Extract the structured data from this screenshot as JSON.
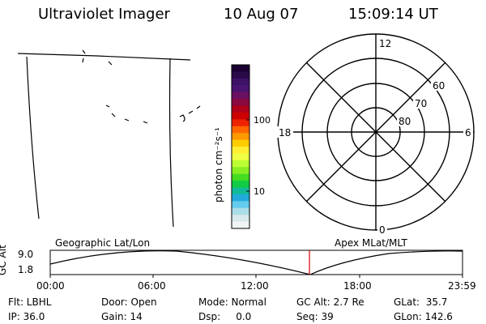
{
  "header": {
    "instrument": "Ultraviolet Imager",
    "date": "10 Aug 07",
    "time": "15:09:14 UT"
  },
  "colorbar": {
    "label": "photon cm⁻²s⁻¹",
    "ticks": [
      "100",
      "10"
    ],
    "colors_top_to_bottom": [
      "#1a0033",
      "#2b0a4a",
      "#3d1266",
      "#4b1470",
      "#6a1060",
      "#8a0a40",
      "#b0001a",
      "#cc0000",
      "#ee2200",
      "#ff6600",
      "#ff9900",
      "#ffcc00",
      "#ffee33",
      "#eeff44",
      "#bbff33",
      "#88ee22",
      "#44dd22",
      "#11cc44",
      "#11bb99",
      "#22aadd",
      "#66ccee",
      "#aadde8",
      "#d8e8ec",
      "#f0f4f4"
    ]
  },
  "polar": {
    "mlt_labels": {
      "top": "12",
      "left": "18",
      "right": "6",
      "bottom": "0"
    },
    "lat_labels": [
      "60",
      "70",
      "80"
    ]
  },
  "orbit": {
    "left_label": "Geographic Lat/Lon",
    "right_label": "Apex MLat/MLT",
    "axis_title": "GC Alt",
    "y_ticks": [
      "9.0",
      "1.8"
    ],
    "x_ticks": [
      "00:00",
      "06:00",
      "12:00",
      "18:00",
      "23:59"
    ]
  },
  "status": {
    "flt": "Flt: LBHL",
    "ip": "IP: 36.0",
    "door": "Door: Open",
    "gain": "Gain: 14",
    "mode": "Mode: Normal",
    "dsp": "Dsp:     0.0",
    "gc_alt": "GC Alt: 2.7 Re",
    "seq": "Seq: 39",
    "glat": "GLat:  35.7",
    "glon": "GLon: 142.6"
  },
  "colors": {
    "marker": "#dd0000"
  }
}
